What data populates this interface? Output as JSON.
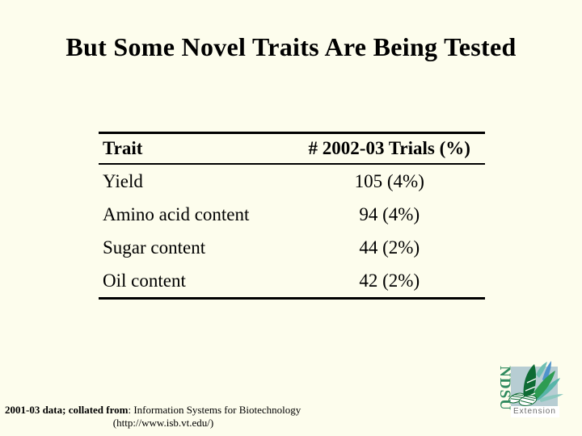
{
  "slide": {
    "title": "But Some Novel Traits Are Being Tested",
    "background_color": "#FDFDED"
  },
  "table": {
    "columns": [
      "Trait",
      "# 2002-03 Trials (%)"
    ],
    "rows": [
      {
        "trait": "Yield",
        "value": "105 (4%)"
      },
      {
        "trait": "Amino acid content",
        "value": "94 (4%)"
      },
      {
        "trait": "Sugar content",
        "value": "44 (2%)"
      },
      {
        "trait": "Oil content",
        "value": "42 (2%)"
      }
    ]
  },
  "footnote": {
    "bold": "2001-03 data; collated from",
    "regular": ": Information Systems for Biotechnology",
    "line2": "(http://www.isb.vt.edu/)"
  },
  "logo": {
    "wordmark": "NDSU",
    "caption": "Extension",
    "colors": {
      "square": "#B7CDD3",
      "wordmark_green": "#2F8A5E",
      "caption_gray": "#6B6B6B",
      "leaf_dark_green": "#0E6B34",
      "leaf_green": "#2E9C52",
      "leaf_teal": "#57B5A8",
      "leaf_light_teal": "#8CC8BF",
      "leaf_blue": "#4F93CC"
    }
  }
}
